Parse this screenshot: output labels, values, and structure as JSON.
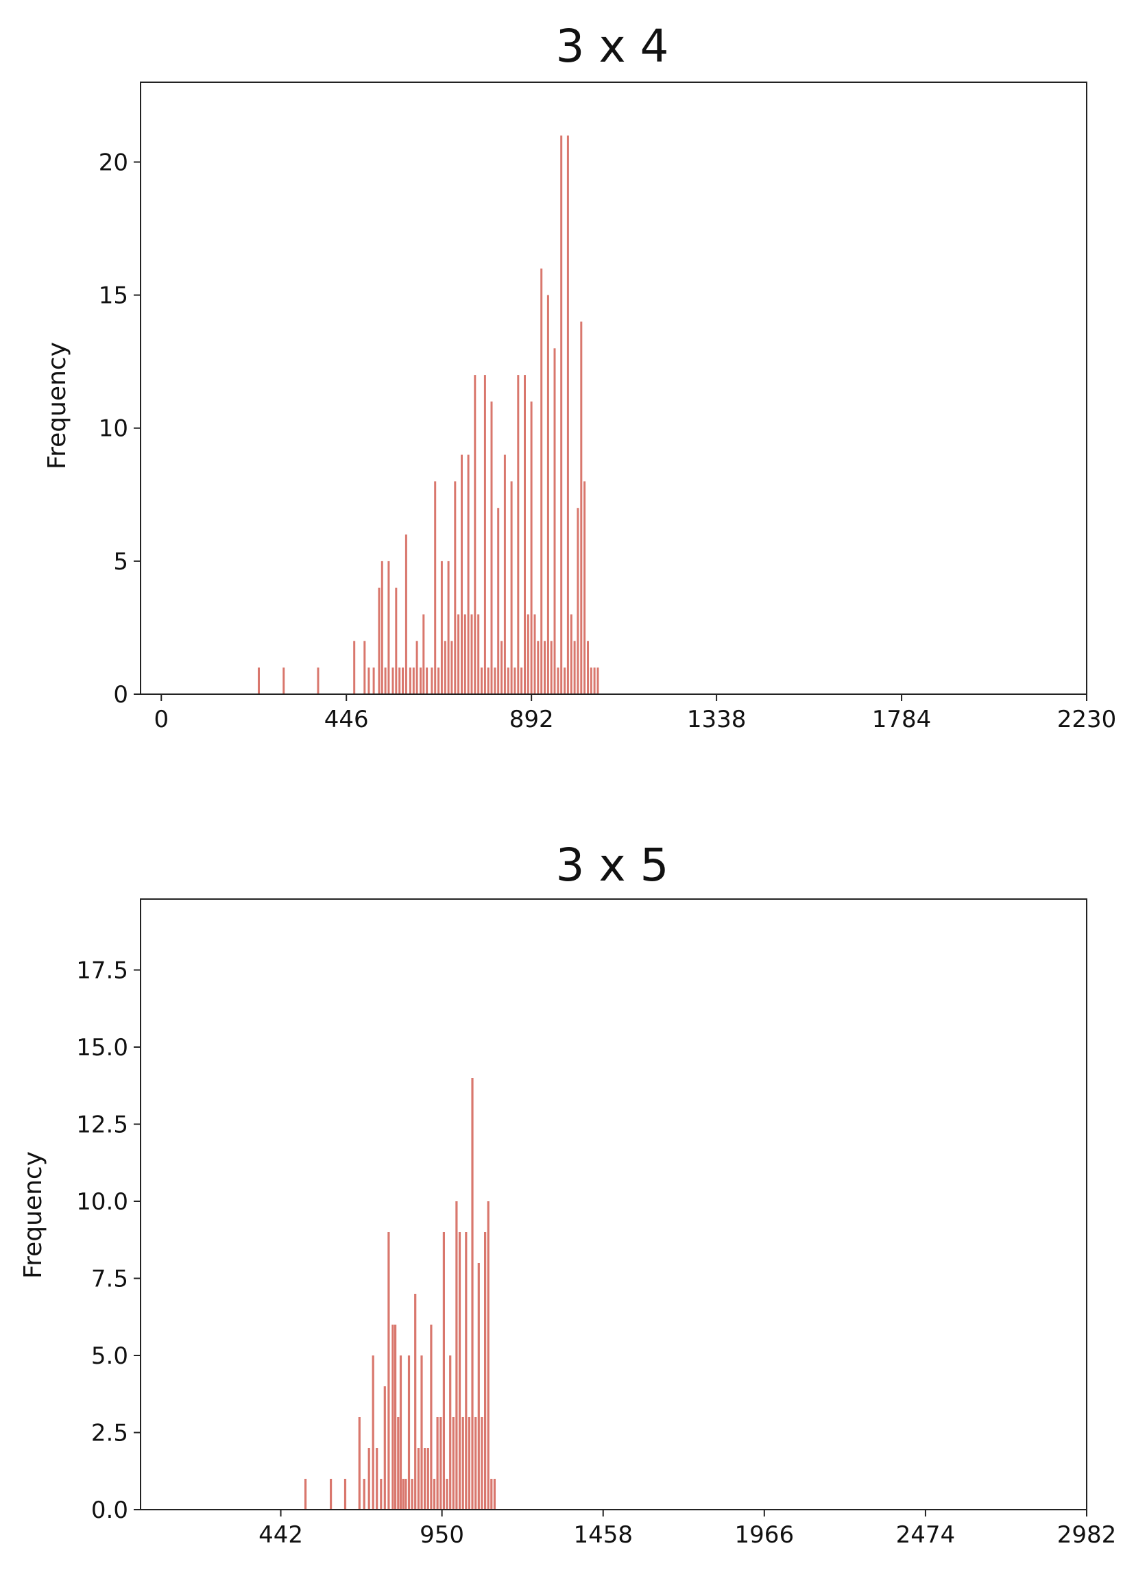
{
  "chart_data": [
    {
      "type": "bar",
      "title": "3 x 4",
      "xlabel": "",
      "ylabel": "Frequency",
      "xlim": [
        -50,
        2230
      ],
      "ylim": [
        0,
        23
      ],
      "xticks": [
        0,
        446,
        892,
        1338,
        1784,
        2230
      ],
      "xtick_labels": [
        "0",
        "446",
        "892",
        "1338",
        "1784",
        "2230"
      ],
      "yticks": [
        0,
        5,
        10,
        15,
        20
      ],
      "ytick_labels": [
        "0",
        "5",
        "10",
        "15",
        "20"
      ],
      "bar_color": "#d9776d",
      "bin_width": 5,
      "x": [
        235,
        295,
        378,
        465,
        490,
        500,
        512,
        525,
        532,
        540,
        548,
        558,
        566,
        574,
        582,
        590,
        600,
        608,
        616,
        625,
        632,
        640,
        652,
        660,
        668,
        676,
        684,
        692,
        700,
        708,
        716,
        724,
        732,
        740,
        748,
        756,
        764,
        772,
        780,
        788,
        796,
        804,
        812,
        820,
        828,
        836,
        844,
        852,
        860,
        868,
        876,
        884,
        892,
        900,
        908,
        916,
        924,
        932,
        940,
        948,
        956,
        964,
        972,
        980,
        988,
        996,
        1004,
        1012,
        1020,
        1028,
        1036,
        1044,
        1052
      ],
      "values": [
        1,
        1,
        1,
        2,
        2,
        1,
        1,
        4,
        5,
        1,
        5,
        1,
        4,
        1,
        1,
        6,
        1,
        1,
        2,
        1,
        3,
        1,
        1,
        8,
        1,
        5,
        2,
        5,
        2,
        8,
        3,
        9,
        3,
        9,
        3,
        12,
        3,
        1,
        12,
        1,
        11,
        1,
        7,
        2,
        9,
        1,
        8,
        1,
        12,
        1,
        12,
        3,
        11,
        3,
        2,
        16,
        2,
        15,
        2,
        13,
        1,
        21,
        1,
        21,
        3,
        2,
        7,
        14,
        8,
        2,
        1,
        1,
        1
      ]
    },
    {
      "type": "bar",
      "title": "3 x 5",
      "xlabel": "",
      "ylabel": "Frequency",
      "xlim": [
        0,
        2982
      ],
      "ylim": [
        0,
        19.8
      ],
      "xticks": [
        442,
        950,
        1458,
        1966,
        2474,
        2982
      ],
      "xtick_labels": [
        "442",
        "950",
        "1458",
        "1966",
        "2474",
        "2982"
      ],
      "yticks": [
        0,
        2.5,
        5,
        7.5,
        10,
        12.5,
        15,
        17.5
      ],
      "ytick_labels": [
        "0.0",
        "2.5",
        "5.0",
        "7.5",
        "10.0",
        "12.5",
        "15.0",
        "17.5"
      ],
      "bar_color": "#d9776d",
      "bin_width": 7,
      "x": [
        520,
        600,
        645,
        690,
        705,
        720,
        733,
        745,
        758,
        770,
        782,
        795,
        803,
        812,
        820,
        828,
        836,
        846,
        856,
        866,
        876,
        886,
        896,
        906,
        916,
        926,
        936,
        946,
        956,
        966,
        976,
        986,
        996,
        1006,
        1016,
        1026,
        1036,
        1046,
        1056,
        1066,
        1076,
        1086,
        1096,
        1106,
        1116
      ],
      "values": [
        1,
        1,
        1,
        3,
        1,
        2,
        5,
        2,
        1,
        4,
        9,
        6,
        6,
        3,
        5,
        1,
        1,
        5,
        1,
        7,
        2,
        5,
        2,
        2,
        6,
        1,
        3,
        3,
        9,
        1,
        5,
        3,
        10,
        9,
        3,
        9,
        3,
        14,
        3,
        8,
        3,
        9,
        10,
        1,
        1
      ]
    }
  ]
}
